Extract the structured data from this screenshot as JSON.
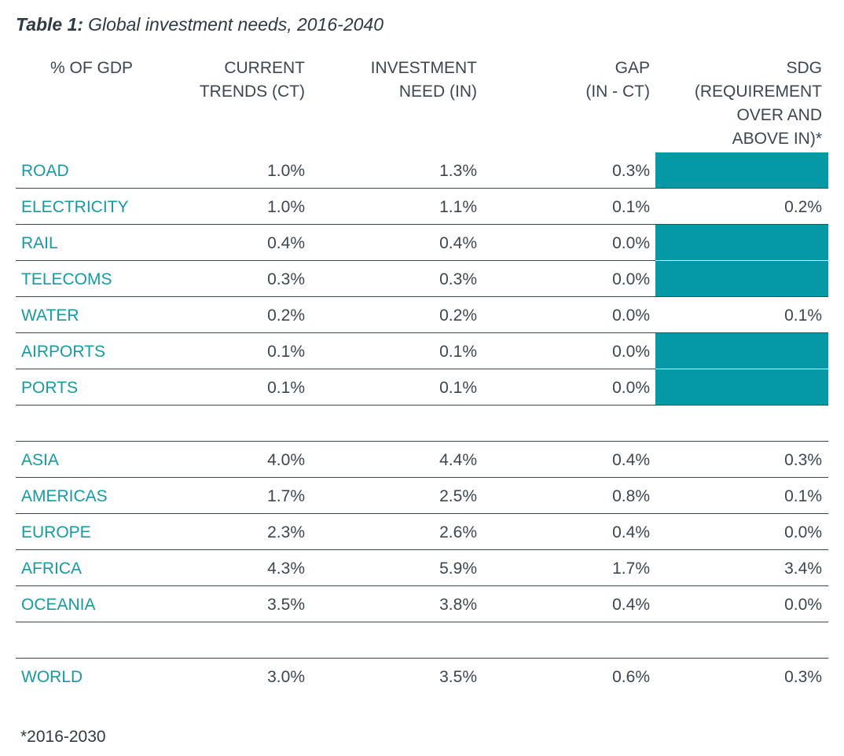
{
  "caption": {
    "label": "Table 1:",
    "text": "Global investment needs, 2016-2040"
  },
  "headers": {
    "gdp": [
      "% OF GDP"
    ],
    "ct": [
      "CURRENT",
      "TRENDS (CT)"
    ],
    "in": [
      "INVESTMENT",
      "NEED (IN)"
    ],
    "gap": [
      "GAP",
      "(IN - CT)"
    ],
    "sdg": [
      "SDG",
      "(REQUIREMENT",
      "OVER AND",
      "ABOVE IN)*"
    ]
  },
  "colors": {
    "accent_text": "#179aa3",
    "accent_fill": "#0599a7",
    "body_text": "#3d4650"
  },
  "sectors": [
    {
      "name": "ROAD",
      "ct": "1.0%",
      "in": "1.3%",
      "gap": "0.3%",
      "sdg": null
    },
    {
      "name": "ELECTRICITY",
      "ct": "1.0%",
      "in": "1.1%",
      "gap": "0.1%",
      "sdg": "0.2%"
    },
    {
      "name": "RAIL",
      "ct": "0.4%",
      "in": "0.4%",
      "gap": "0.0%",
      "sdg": null
    },
    {
      "name": "TELECOMS",
      "ct": "0.3%",
      "in": "0.3%",
      "gap": "0.0%",
      "sdg": null
    },
    {
      "name": "WATER",
      "ct": "0.2%",
      "in": "0.2%",
      "gap": "0.0%",
      "sdg": "0.1%"
    },
    {
      "name": "AIRPORTS",
      "ct": "0.1%",
      "in": "0.1%",
      "gap": "0.0%",
      "sdg": null
    },
    {
      "name": "PORTS",
      "ct": "0.1%",
      "in": "0.1%",
      "gap": "0.0%",
      "sdg": null
    }
  ],
  "regions": [
    {
      "name": "ASIA",
      "ct": "4.0%",
      "in": "4.4%",
      "gap": "0.4%",
      "sdg": "0.3%"
    },
    {
      "name": "AMERICAS",
      "ct": "1.7%",
      "in": "2.5%",
      "gap": "0.8%",
      "sdg": "0.1%"
    },
    {
      "name": "EUROPE",
      "ct": "2.3%",
      "in": "2.6%",
      "gap": "0.4%",
      "sdg": "0.0%"
    },
    {
      "name": "AFRICA",
      "ct": "4.3%",
      "in": "5.9%",
      "gap": "1.7%",
      "sdg": "3.4%"
    },
    {
      "name": "OCEANIA",
      "ct": "3.5%",
      "in": "3.8%",
      "gap": "0.4%",
      "sdg": "0.0%"
    }
  ],
  "world": [
    {
      "name": "WORLD",
      "ct": "3.0%",
      "in": "3.5%",
      "gap": "0.6%",
      "sdg": "0.3%"
    }
  ],
  "footnote": "*2016-2030"
}
